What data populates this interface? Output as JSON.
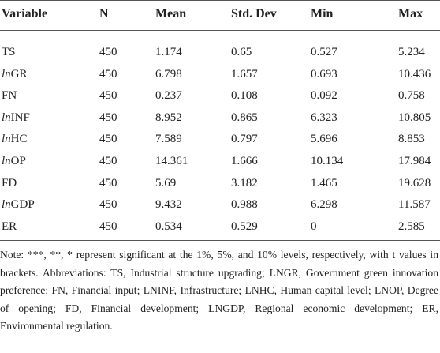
{
  "table": {
    "header": [
      "Variable",
      "N",
      "Mean",
      "Std. Dev",
      "Min",
      "Max"
    ],
    "rows": [
      [
        "TS",
        "450",
        "1.174",
        "0.65",
        "0.527",
        "5.234"
      ],
      [
        "lnGR",
        "450",
        "6.798",
        "1.657",
        "0.693",
        "10.436"
      ],
      [
        "FN",
        "450",
        "0.237",
        "0.108",
        "0.092",
        "0.758"
      ],
      [
        "lnINF",
        "450",
        "8.952",
        "0.865",
        "6.323",
        "10.805"
      ],
      [
        "lnHC",
        "450",
        "7.589",
        "0.797",
        "5.696",
        "8.853"
      ],
      [
        "lnOP",
        "450",
        "14.361",
        "1.666",
        "10.134",
        "17.984"
      ],
      [
        "FD",
        "450",
        "5.69",
        "3.182",
        "1.465",
        "19.628"
      ],
      [
        "lnGDP",
        "450",
        "9.432",
        "0.988",
        "6.298",
        "11.587"
      ],
      [
        "ER",
        "450",
        "0.534",
        "0.529",
        "0",
        "2.585"
      ]
    ],
    "note": "Note: ***, **, * represent significant at the 1%, 5%, and 10% levels, respectively, with t values in brackets. Abbreviations: TS, Industrial structure upgrading; LNGR, Government green innovation preference; FN, Financial input; LNINF, Infrastructure; LNHC, Human capital level; LNOP, Degree of opening; FD, Financial development; LNGDP, Regional economic development; ER, Environmental regulation."
  }
}
